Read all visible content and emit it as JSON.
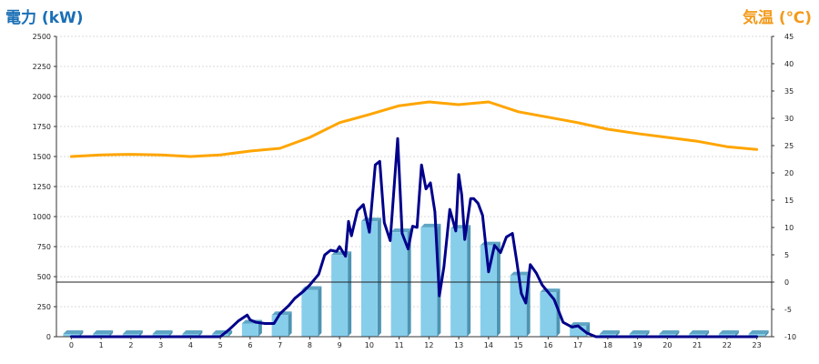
{
  "chart_data": {
    "type": "bar",
    "left_axis_title": "電力 (kW)",
    "right_axis_title": "気温 (℃)",
    "left_ylim": [
      0,
      2500
    ],
    "left_ticks": [
      0,
      250,
      500,
      750,
      1000,
      1250,
      1500,
      1750,
      2000,
      2250,
      2500
    ],
    "right_ylim": [
      -10,
      45
    ],
    "right_ticks": [
      -10,
      -5,
      0,
      5,
      10,
      15,
      20,
      25,
      30,
      35,
      40,
      45
    ],
    "categories": [
      "0",
      "1",
      "2",
      "3",
      "4",
      "5",
      "6",
      "7",
      "8",
      "9",
      "10",
      "11",
      "12",
      "13",
      "14",
      "15",
      "16",
      "17",
      "18",
      "19",
      "20",
      "21",
      "22",
      "23"
    ],
    "grid": true,
    "series": [
      {
        "kind": "bar",
        "axis": "left",
        "color": "#87ceeb",
        "values": [
          0,
          0,
          0,
          0,
          0,
          0,
          110,
          180,
          390,
          680,
          960,
          870,
          910,
          900,
          760,
          510,
          370,
          90,
          0,
          0,
          0,
          0,
          0,
          0
        ]
      },
      {
        "kind": "line",
        "axis": "left",
        "color": "#00008b",
        "x": [
          0,
          5,
          5.3,
          5.6,
          5.9,
          6.0,
          6.2,
          6.5,
          6.8,
          7.0,
          7.3,
          7.5,
          7.8,
          8.0,
          8.3,
          8.5,
          8.7,
          8.9,
          9.0,
          9.2,
          9.3,
          9.4,
          9.6,
          9.8,
          10.0,
          10.2,
          10.35,
          10.5,
          10.7,
          10.95,
          11.1,
          11.3,
          11.45,
          11.6,
          11.75,
          11.9,
          12.05,
          12.2,
          12.35,
          12.5,
          12.7,
          12.9,
          13.0,
          13.1,
          13.2,
          13.4,
          13.5,
          13.65,
          13.8,
          14.0,
          14.2,
          14.4,
          14.6,
          14.8,
          14.95,
          15.1,
          15.25,
          15.4,
          15.6,
          15.8,
          16.0,
          16.2,
          16.5,
          16.8,
          17.0,
          17.3,
          17.6,
          18.0,
          23.0
        ],
        "values": [
          0,
          0,
          60,
          130,
          180,
          140,
          120,
          110,
          110,
          190,
          260,
          320,
          380,
          430,
          520,
          680,
          720,
          710,
          750,
          670,
          960,
          840,
          1050,
          1100,
          870,
          1430,
          1460,
          950,
          800,
          1650,
          860,
          730,
          920,
          910,
          1430,
          1230,
          1280,
          1040,
          340,
          580,
          1060,
          880,
          1350,
          1180,
          810,
          1150,
          1150,
          1110,
          1010,
          540,
          760,
          700,
          830,
          860,
          620,
          360,
          280,
          600,
          530,
          430,
          370,
          310,
          120,
          80,
          90,
          30,
          0,
          0,
          0
        ]
      },
      {
        "kind": "line",
        "axis": "right",
        "color": "#ffa500",
        "x": [
          0,
          1,
          2,
          3,
          4,
          5,
          6,
          7,
          8,
          9,
          10,
          11,
          12,
          13,
          14,
          15,
          16,
          17,
          18,
          19,
          20,
          21,
          22,
          23
        ],
        "values": [
          23.0,
          23.3,
          23.4,
          23.3,
          23.0,
          23.3,
          24.0,
          24.5,
          26.5,
          29.2,
          30.7,
          32.3,
          33.0,
          32.5,
          33.0,
          31.2,
          30.2,
          29.2,
          28.0,
          27.2,
          26.5,
          25.8,
          24.8,
          24.3
        ]
      }
    ]
  }
}
